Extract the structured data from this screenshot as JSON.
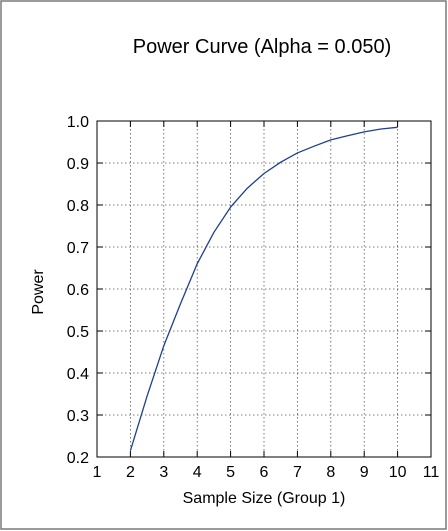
{
  "chart_data": {
    "type": "line",
    "title": "Power Curve (Alpha = 0.050)",
    "xlabel": "Sample Size (Group 1)",
    "ylabel": "Power",
    "xlim": [
      1,
      11
    ],
    "ylim": [
      0.2,
      1.0
    ],
    "x_ticks": [
      1,
      2,
      3,
      4,
      5,
      6,
      7,
      8,
      9,
      10,
      11
    ],
    "x_tick_labels": [
      "1",
      "2",
      "3",
      "4",
      "5",
      "6",
      "7",
      "8",
      "9",
      "10",
      "11"
    ],
    "y_ticks": [
      0.2,
      0.3,
      0.4,
      0.5,
      0.6,
      0.7,
      0.8,
      0.9,
      1.0
    ],
    "y_tick_labels": [
      "0.2",
      "0.3",
      "0.4",
      "0.5",
      "0.6",
      "0.7",
      "0.8",
      "0.9",
      "1.0"
    ],
    "grid": true,
    "series": [
      {
        "color": "#1f3f8f",
        "x": [
          2,
          2.5,
          3,
          3.5,
          4,
          4.5,
          5,
          5.5,
          6,
          6.5,
          7,
          7.5,
          8,
          8.5,
          9,
          9.5,
          10
        ],
        "y": [
          0.215,
          0.345,
          0.465,
          0.565,
          0.66,
          0.735,
          0.795,
          0.84,
          0.875,
          0.902,
          0.924,
          0.94,
          0.955,
          0.965,
          0.974,
          0.981,
          0.985
        ]
      }
    ]
  }
}
